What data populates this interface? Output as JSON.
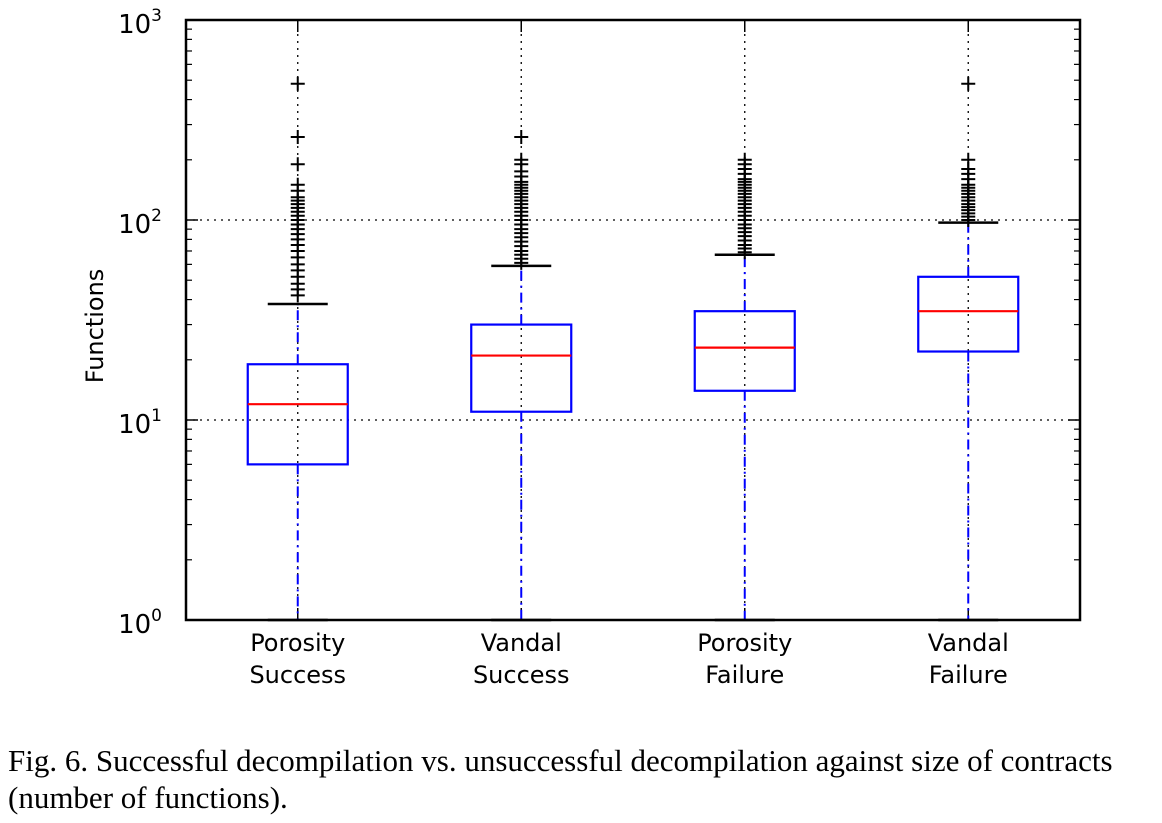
{
  "chart_data": {
    "type": "box",
    "ylabel": "Functions",
    "yscale": "log",
    "ylim": [
      1,
      1000
    ],
    "yticks": [
      {
        "base": "10",
        "exp": "0",
        "value": 1
      },
      {
        "base": "10",
        "exp": "1",
        "value": 10
      },
      {
        "base": "10",
        "exp": "2",
        "value": 100
      },
      {
        "base": "10",
        "exp": "3",
        "value": 1000
      }
    ],
    "grid": true,
    "colors": {
      "box": "#0000ff",
      "median": "#ff0000",
      "whisker": "#0000ff",
      "flier": "#000000"
    },
    "categories": [
      {
        "line1": "Porosity",
        "line2": "Success"
      },
      {
        "line1": "Vandal",
        "line2": "Success"
      },
      {
        "line1": "Porosity",
        "line2": "Failure"
      },
      {
        "line1": "Vandal",
        "line2": "Failure"
      }
    ],
    "boxes": [
      {
        "whislo": 1,
        "q1": 6,
        "med": 12,
        "q3": 19,
        "whishi": 38,
        "fliers": [
          42,
          45,
          48,
          52,
          56,
          60,
          65,
          70,
          75,
          80,
          85,
          90,
          95,
          100,
          105,
          110,
          115,
          120,
          125,
          130,
          140,
          150,
          190,
          260,
          480
        ]
      },
      {
        "whislo": 1,
        "q1": 11,
        "med": 21,
        "q3": 30,
        "whishi": 59,
        "fliers": [
          61,
          64,
          67,
          70,
          74,
          78,
          82,
          86,
          90,
          95,
          100,
          105,
          110,
          115,
          120,
          125,
          130,
          135,
          140,
          145,
          150,
          155,
          165,
          175,
          190,
          200,
          260
        ]
      },
      {
        "whislo": 1,
        "q1": 14,
        "med": 23,
        "q3": 35,
        "whishi": 67,
        "fliers": [
          69,
          72,
          75,
          79,
          83,
          87,
          91,
          95,
          100,
          105,
          110,
          115,
          120,
          125,
          130,
          135,
          140,
          145,
          150,
          155,
          160,
          170,
          180,
          190,
          200
        ]
      },
      {
        "whislo": 1,
        "q1": 22,
        "med": 35,
        "q3": 52,
        "whishi": 97,
        "fliers": [
          100,
          104,
          108,
          112,
          116,
          120,
          125,
          130,
          135,
          140,
          145,
          150,
          160,
          170,
          180,
          200,
          480
        ]
      }
    ]
  },
  "caption": "Fig. 6.  Successful decompilation vs. unsuccessful decompilation against size of contracts (number of functions)."
}
